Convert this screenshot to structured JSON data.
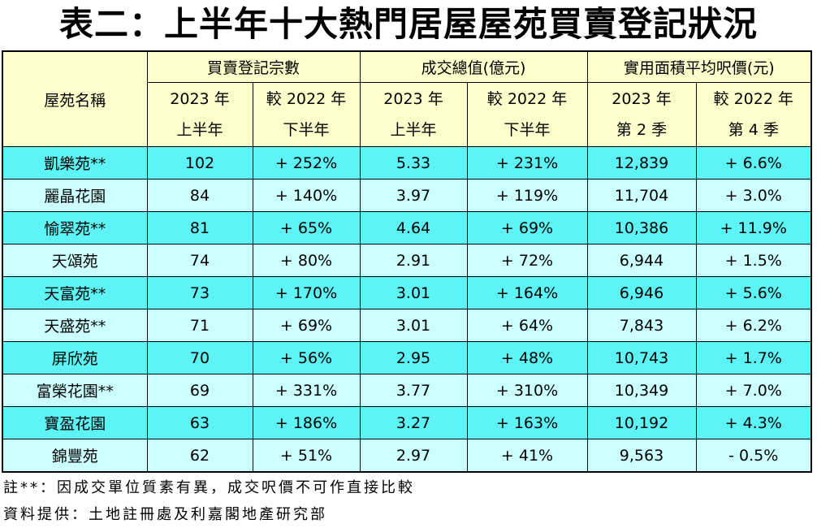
{
  "header": {
    "title": "表二：上半年十大熱門居屋屋苑買賣登記狀況"
  },
  "table": {
    "name_header": "屋苑名稱",
    "groups": [
      "買賣登記宗數",
      "成交總值(億元)",
      "實用面積平均呎價(元)"
    ],
    "subheaders": [
      [
        "2023 年",
        "上半年"
      ],
      [
        "較 2022 年",
        "下半年"
      ],
      [
        "2023 年",
        "上半年"
      ],
      [
        "較 2022 年",
        "下半年"
      ],
      [
        "2023 年",
        "第 2 季"
      ],
      [
        "較 2022 年",
        "第 4 季"
      ]
    ],
    "rows": [
      [
        "凱樂苑**",
        "102",
        "+ 252%",
        "5.33",
        "+ 231%",
        "12,839",
        "+ 6.6%"
      ],
      [
        "麗晶花園",
        "84",
        "+ 140%",
        "3.97",
        "+ 119%",
        "11,704",
        "+ 3.0%"
      ],
      [
        "愉翠苑**",
        "81",
        "+ 65%",
        "4.64",
        "+ 69%",
        "10,386",
        "+ 11.9%"
      ],
      [
        "天頌苑",
        "74",
        "+ 80%",
        "2.91",
        "+ 72%",
        "6,944",
        "+ 1.5%"
      ],
      [
        "天富苑**",
        "73",
        "+ 170%",
        "3.01",
        "+ 164%",
        "6,946",
        "+ 5.6%"
      ],
      [
        "天盛苑**",
        "71",
        "+ 69%",
        "3.01",
        "+ 64%",
        "7,843",
        "+ 6.2%"
      ],
      [
        "屏欣苑",
        "70",
        "+ 56%",
        "2.95",
        "+ 48%",
        "10,743",
        "+ 1.7%"
      ],
      [
        "富榮花園**",
        "69",
        "+ 331%",
        "3.77",
        "+ 310%",
        "10,349",
        "+ 7.0%"
      ],
      [
        "寶盈花園",
        "63",
        "+ 186%",
        "3.27",
        "+ 163%",
        "10,192",
        "+ 4.3%"
      ],
      [
        "錦豐苑",
        "62",
        "+ 51%",
        "2.97",
        "+ 41%",
        "9,563",
        "- 0.5%"
      ]
    ]
  },
  "notes": [
    "註**：因成交單位質素有異，成交呎價不可作直接比較",
    "資料提供：土地註冊處及利嘉閣地產研究部"
  ]
}
